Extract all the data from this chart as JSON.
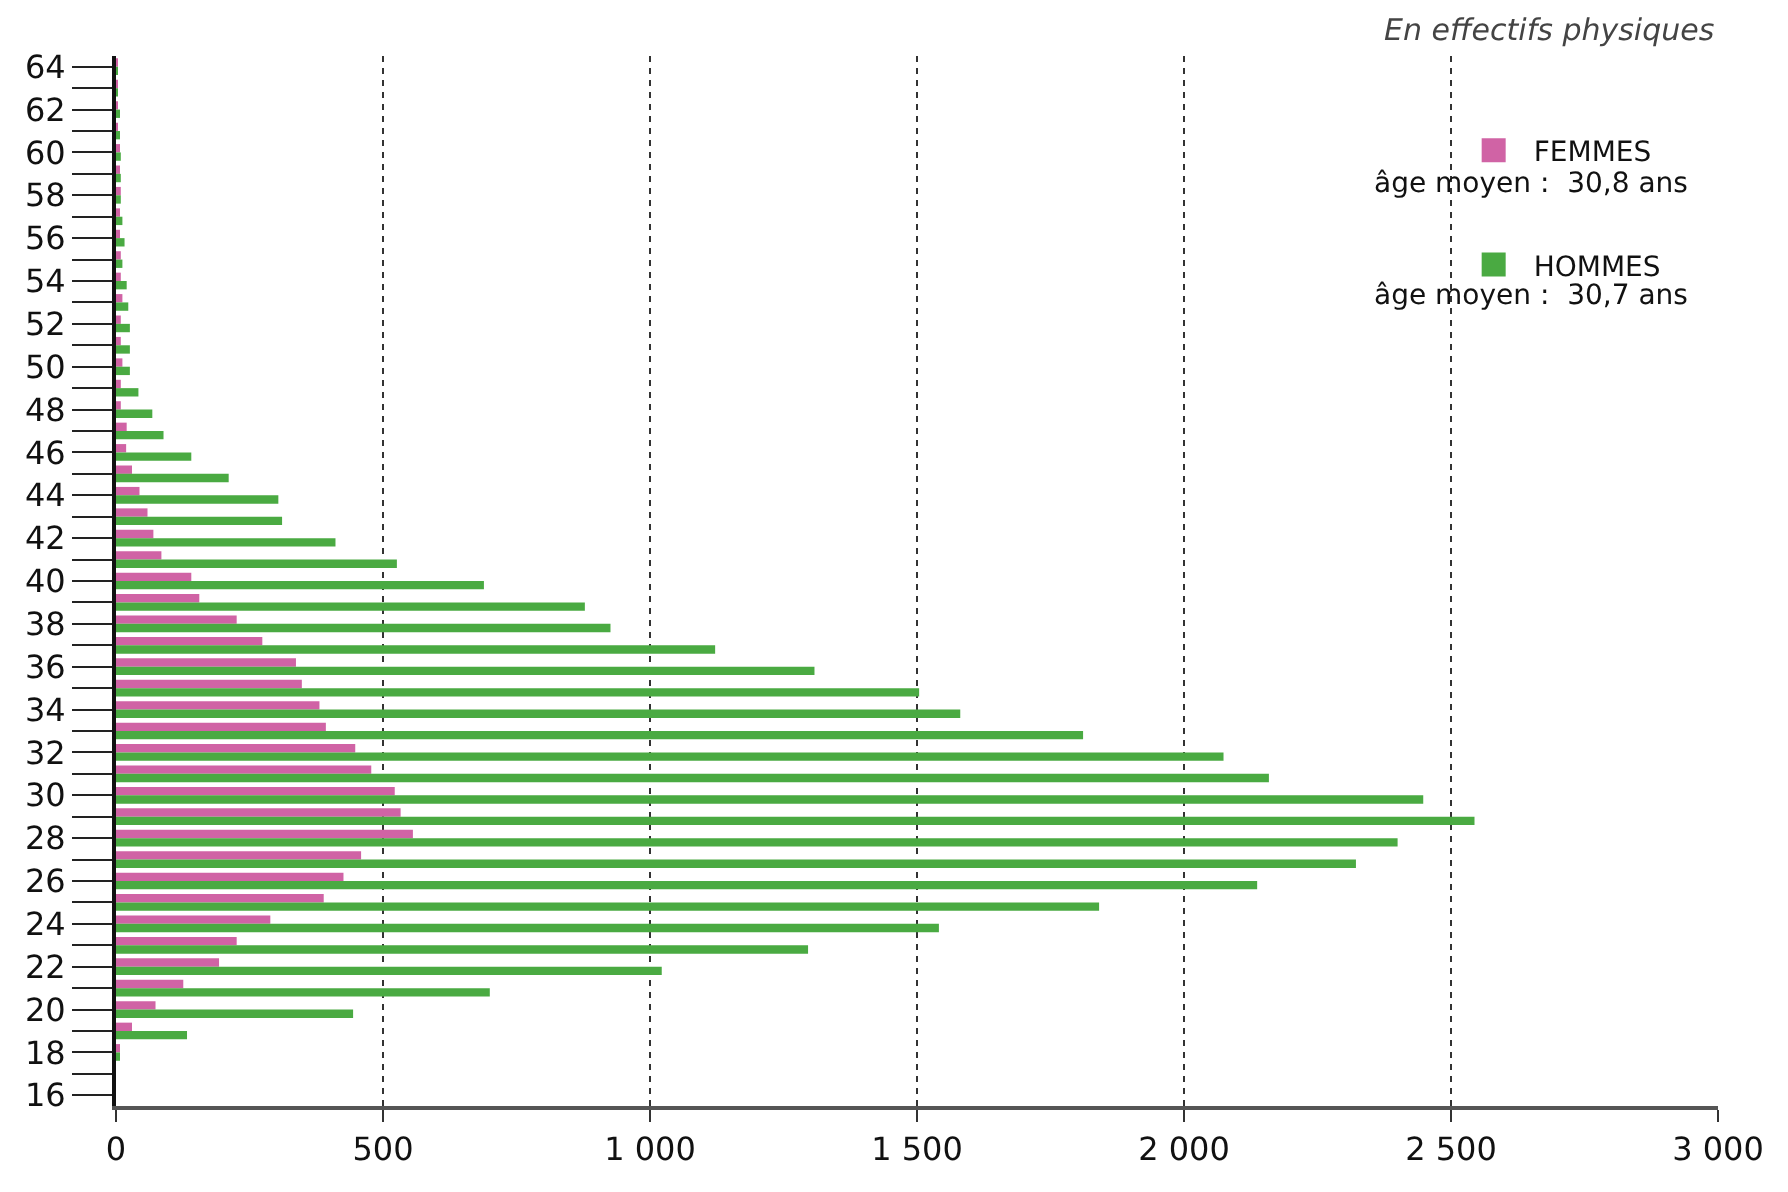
{
  "chart_data": {
    "type": "bar",
    "orientation": "horizontal",
    "categories": [
      "64",
      null,
      "62",
      null,
      "60",
      null,
      "58",
      null,
      "56",
      null,
      "54",
      null,
      "52",
      null,
      "50",
      null,
      "48",
      null,
      "46",
      null,
      "44",
      null,
      "42",
      null,
      "40",
      null,
      "38",
      null,
      "36",
      null,
      "34",
      null,
      "32",
      null,
      "30",
      null,
      "28",
      null,
      "26",
      null,
      "24",
      null,
      "22",
      null,
      "20",
      null,
      "18",
      null,
      "16"
    ],
    "series": [
      {
        "name": "FEMMES",
        "color": "#d063a5",
        "values": [
          1,
          2,
          2,
          3,
          5,
          5,
          9,
          5,
          5,
          9,
          9,
          12,
          9,
          9,
          12,
          9,
          9,
          20,
          19,
          30,
          44,
          59,
          70,
          85,
          141,
          156,
          226,
          274,
          337,
          348,
          381,
          393,
          448,
          478,
          522,
          533,
          556,
          459,
          426,
          389,
          289,
          226,
          193,
          126,
          74,
          30,
          4,
          0,
          0
        ]
      },
      {
        "name": "HOMMES",
        "color": "#4aaa42",
        "values": [
          1,
          2,
          5,
          5,
          9,
          9,
          9,
          12,
          16,
          12,
          20,
          23,
          26,
          26,
          26,
          42,
          68,
          89,
          141,
          211,
          304,
          311,
          411,
          526,
          689,
          878,
          926,
          1122,
          1308,
          1504,
          1581,
          1811,
          2074,
          2159,
          2448,
          2544,
          2400,
          2322,
          2137,
          1841,
          1541,
          1296,
          1022,
          700,
          444,
          133,
          7,
          0,
          0
        ]
      }
    ],
    "xlim": [
      0,
      3000
    ],
    "xticks": [
      0,
      500,
      {
        "value": 1000,
        "label": "1 000"
      },
      {
        "value": 1500,
        "label": "1 500"
      },
      {
        "value": 2000,
        "label": "2 000"
      },
      {
        "value": 2500,
        "label": "2 500"
      },
      {
        "value": 3000,
        "label": "3 000"
      }
    ],
    "grid": "x",
    "legend": "top right",
    "annotations": [
      "En effectifs physiques",
      "âge moyen :  30,8 ans",
      "âge moyen :  30,7 ans"
    ]
  }
}
